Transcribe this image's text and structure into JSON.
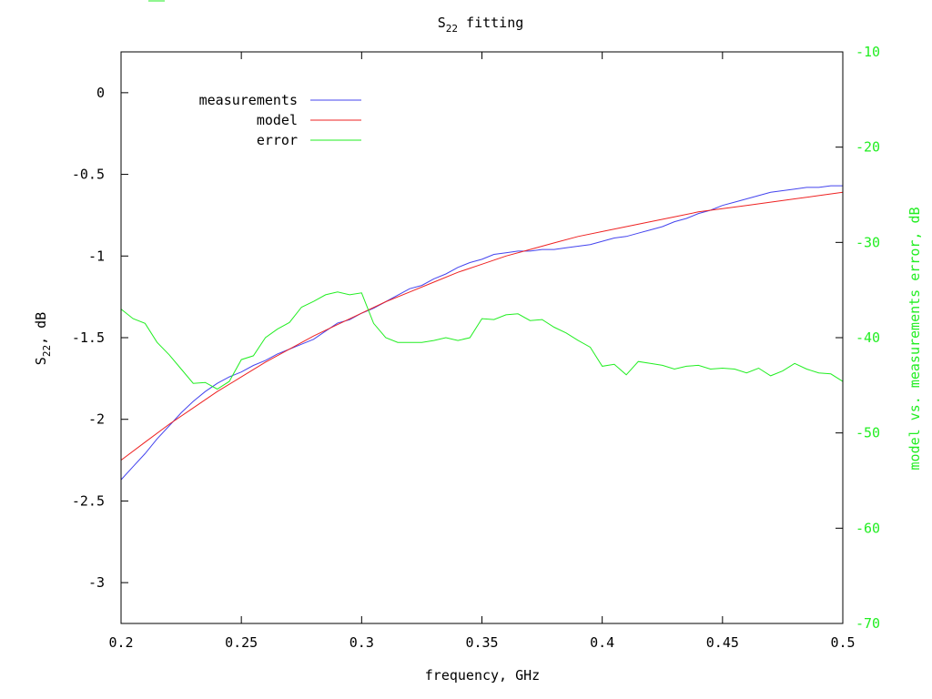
{
  "chart_data": {
    "type": "line",
    "title_main": "S",
    "title_sub": "22",
    "title_rest": " fitting",
    "xlabel": "frequency, GHz",
    "ylabel_main": "S",
    "ylabel_sub": "22",
    "ylabel_rest": ", dB",
    "y2label": "model vs. measurements error, dB",
    "xlim": [
      0.2,
      0.5
    ],
    "ylim": [
      -3.25,
      0.25
    ],
    "y2lim": [
      -70,
      -10
    ],
    "xticks": [
      "0.2",
      "0.25",
      "0.3",
      "0.35",
      "0.4",
      "0.45",
      "0.5"
    ],
    "xtick_values": [
      0.2,
      0.25,
      0.3,
      0.35,
      0.4,
      0.45,
      0.5
    ],
    "yticks": [
      "0",
      "-0.5",
      "-1",
      "-1.5",
      "-2",
      "-2.5",
      "-3"
    ],
    "ytick_values": [
      0,
      -0.5,
      -1,
      -1.5,
      -2,
      -2.5,
      -3
    ],
    "y2ticks": [
      "-10",
      "-20",
      "-30",
      "-40",
      "-50",
      "-60",
      "-70"
    ],
    "y2tick_values": [
      -10,
      -20,
      -30,
      -40,
      -50,
      -60,
      -70
    ],
    "legend_position": "top-left",
    "grid": false,
    "series": [
      {
        "name": "measurements",
        "axis": "left",
        "color": "#4444ee",
        "x": [
          0.2,
          0.205,
          0.21,
          0.215,
          0.22,
          0.225,
          0.23,
          0.235,
          0.24,
          0.245,
          0.25,
          0.255,
          0.26,
          0.265,
          0.27,
          0.275,
          0.28,
          0.285,
          0.29,
          0.295,
          0.3,
          0.305,
          0.31,
          0.315,
          0.32,
          0.325,
          0.33,
          0.335,
          0.34,
          0.345,
          0.35,
          0.355,
          0.36,
          0.365,
          0.37,
          0.375,
          0.38,
          0.385,
          0.39,
          0.395,
          0.4,
          0.405,
          0.41,
          0.415,
          0.42,
          0.425,
          0.43,
          0.435,
          0.44,
          0.445,
          0.45,
          0.455,
          0.46,
          0.465,
          0.47,
          0.475,
          0.48,
          0.485,
          0.49,
          0.495,
          0.5
        ],
        "values": [
          -2.37,
          -2.29,
          -2.21,
          -2.12,
          -2.04,
          -1.96,
          -1.89,
          -1.83,
          -1.78,
          -1.74,
          -1.71,
          -1.67,
          -1.64,
          -1.6,
          -1.57,
          -1.54,
          -1.51,
          -1.46,
          -1.41,
          -1.39,
          -1.35,
          -1.32,
          -1.28,
          -1.24,
          -1.2,
          -1.18,
          -1.14,
          -1.11,
          -1.07,
          -1.04,
          -1.02,
          -0.99,
          -0.98,
          -0.97,
          -0.97,
          -0.96,
          -0.96,
          -0.95,
          -0.94,
          -0.93,
          -0.91,
          -0.89,
          -0.88,
          -0.86,
          -0.84,
          -0.82,
          -0.79,
          -0.77,
          -0.74,
          -0.72,
          -0.69,
          -0.67,
          -0.65,
          -0.63,
          -0.61,
          -0.6,
          -0.59,
          -0.58,
          -0.58,
          -0.57,
          -0.57
        ]
      },
      {
        "name": "model",
        "axis": "left",
        "color": "#ee2222",
        "x": [
          0.2,
          0.21,
          0.22,
          0.23,
          0.24,
          0.25,
          0.26,
          0.27,
          0.28,
          0.29,
          0.3,
          0.31,
          0.32,
          0.33,
          0.34,
          0.35,
          0.36,
          0.37,
          0.38,
          0.39,
          0.4,
          0.41,
          0.42,
          0.43,
          0.44,
          0.45,
          0.46,
          0.47,
          0.48,
          0.49,
          0.5
        ],
        "values": [
          -2.25,
          -2.14,
          -2.03,
          -1.93,
          -1.83,
          -1.74,
          -1.65,
          -1.57,
          -1.49,
          -1.42,
          -1.35,
          -1.28,
          -1.22,
          -1.16,
          -1.1,
          -1.05,
          -1.0,
          -0.96,
          -0.92,
          -0.88,
          -0.85,
          -0.82,
          -0.79,
          -0.76,
          -0.73,
          -0.71,
          -0.69,
          -0.67,
          -0.65,
          -0.63,
          -0.61
        ]
      },
      {
        "name": "error",
        "axis": "right",
        "color": "#22ee22",
        "x": [
          0.2,
          0.205,
          0.21,
          0.215,
          0.22,
          0.225,
          0.23,
          0.235,
          0.24,
          0.245,
          0.25,
          0.255,
          0.26,
          0.265,
          0.27,
          0.275,
          0.28,
          0.285,
          0.29,
          0.295,
          0.3,
          0.305,
          0.31,
          0.315,
          0.32,
          0.325,
          0.33,
          0.335,
          0.34,
          0.345,
          0.35,
          0.355,
          0.36,
          0.365,
          0.37,
          0.375,
          0.38,
          0.385,
          0.39,
          0.395,
          0.4,
          0.405,
          0.41,
          0.415,
          0.42,
          0.425,
          0.43,
          0.435,
          0.44,
          0.445,
          0.45,
          0.455,
          0.46,
          0.465,
          0.47,
          0.475,
          0.48,
          0.485,
          0.49,
          0.495,
          0.5
        ],
        "values": [
          -37.0,
          -38.0,
          -38.5,
          -40.5,
          -41.8,
          -43.3,
          -44.8,
          -44.7,
          -45.4,
          -44.6,
          -42.3,
          -41.9,
          -40.0,
          -39.1,
          -38.4,
          -36.8,
          -36.2,
          -35.5,
          -35.2,
          -35.5,
          -35.3,
          -38.5,
          -40.0,
          -40.5,
          -40.5,
          -40.5,
          -40.3,
          -40.0,
          -40.3,
          -40.0,
          -38.0,
          -38.1,
          -37.6,
          -37.5,
          -38.2,
          -38.1,
          -38.9,
          -39.5,
          -40.3,
          -41.0,
          -43.0,
          -42.8,
          -43.9,
          -42.5,
          -42.7,
          -42.9,
          -43.3,
          -43.0,
          -42.9,
          -43.3,
          -43.2,
          -43.3,
          -43.7,
          -43.2,
          -44.0,
          -43.5,
          -42.7,
          -43.3,
          -43.7,
          -43.8,
          -44.6
        ]
      }
    ]
  }
}
